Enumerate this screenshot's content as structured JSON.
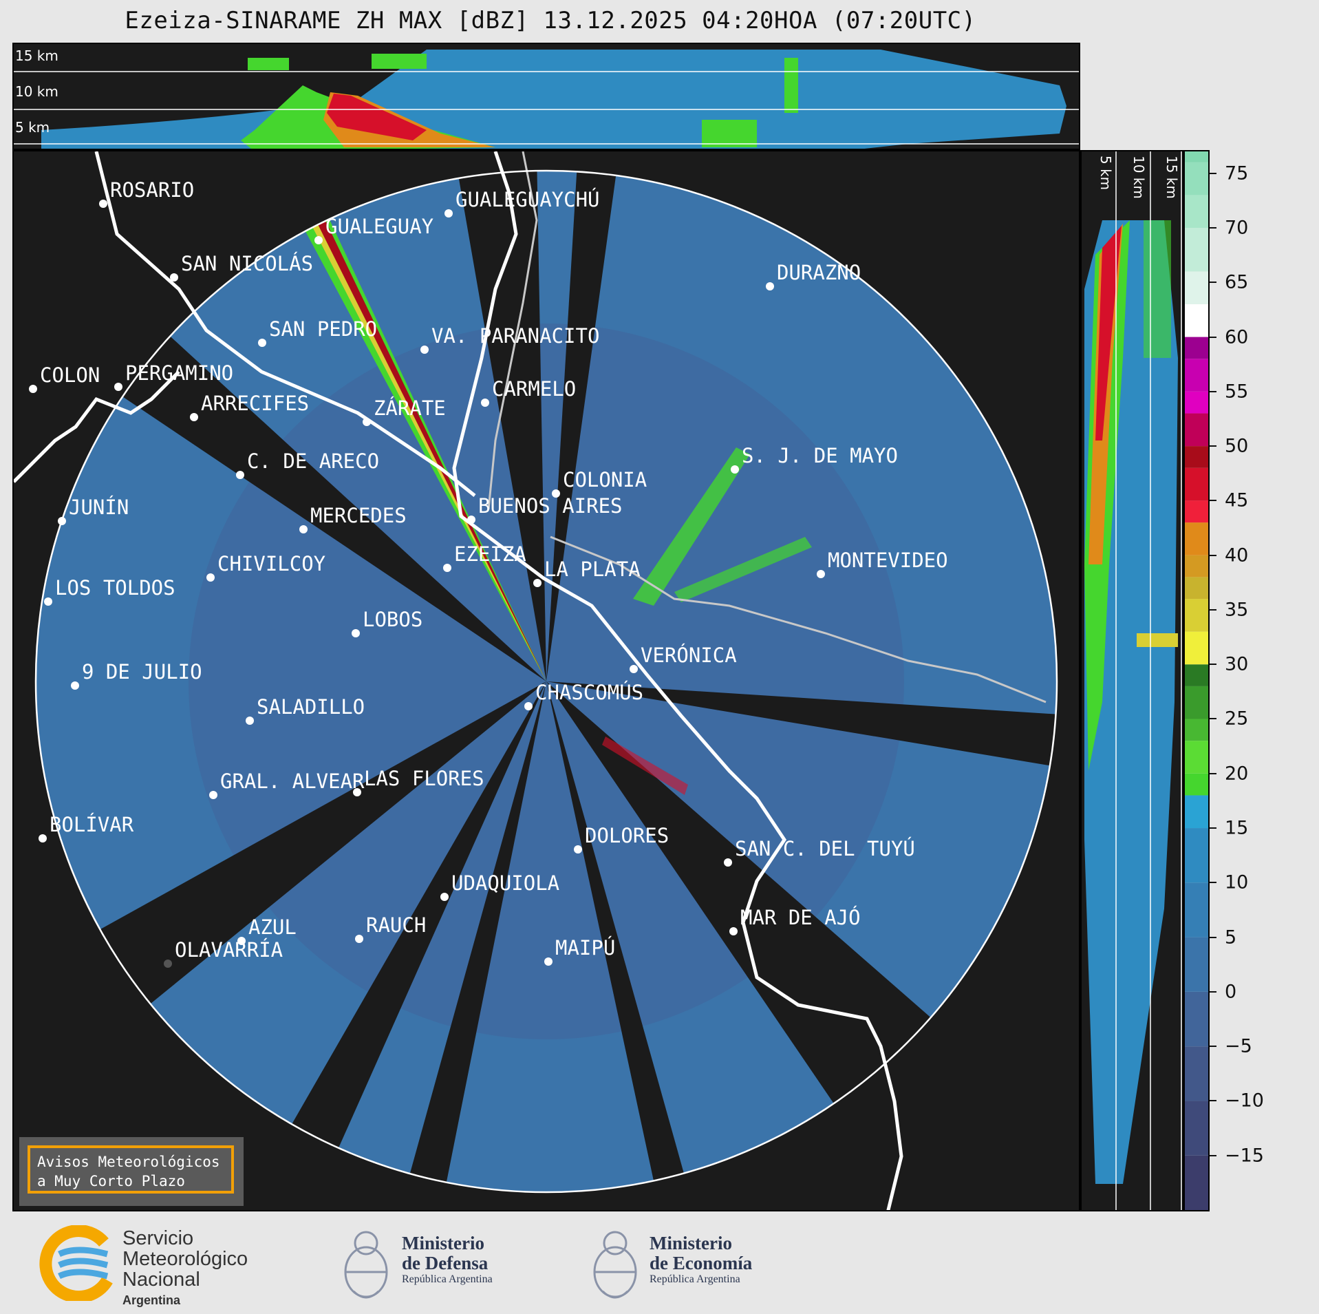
{
  "title": "Ezeiza-SINARAME ZH MAX [dBZ] 13.12.2025 04:20HOA (07:20UTC)",
  "top_panel": {
    "km_labels": [
      "15 km",
      "10 km",
      "5 km"
    ]
  },
  "side_panel": {
    "km_labels": [
      "5 km",
      "10 km",
      "15 km"
    ]
  },
  "map": {
    "cities": [
      {
        "name": "ROSARIO"
      },
      {
        "name": "GUALEGUAYCHÚ"
      },
      {
        "name": "GUALEGUAY"
      },
      {
        "name": "SAN NICOLÁS"
      },
      {
        "name": "DURAZNO"
      },
      {
        "name": "SAN PEDRO"
      },
      {
        "name": "VA. PARANACITO"
      },
      {
        "name": "COLON"
      },
      {
        "name": "PERGAMINO"
      },
      {
        "name": "CARMELO"
      },
      {
        "name": "ARRECIFES"
      },
      {
        "name": "ZÁRATE"
      },
      {
        "name": "S. J. DE MAYO"
      },
      {
        "name": "C. DE ARECO"
      },
      {
        "name": "COLONIA"
      },
      {
        "name": "BUENOS AIRES"
      },
      {
        "name": "JUNÍN"
      },
      {
        "name": "MERCEDES"
      },
      {
        "name": "MONTEVIDEO"
      },
      {
        "name": "EZEIZA"
      },
      {
        "name": "CHIVILCOY"
      },
      {
        "name": "LA PLATA"
      },
      {
        "name": "LOS TOLDOS"
      },
      {
        "name": "LOBOS"
      },
      {
        "name": "VERÓNICA"
      },
      {
        "name": "9 DE JULIO"
      },
      {
        "name": "CHASCOMÚS"
      },
      {
        "name": "SALADILLO"
      },
      {
        "name": "GRAL. ALVEAR"
      },
      {
        "name": "LAS FLORES"
      },
      {
        "name": "BOLÍVAR"
      },
      {
        "name": "DOLORES"
      },
      {
        "name": "SAN C. DEL TUYÚ"
      },
      {
        "name": "UDAQUIOLA"
      },
      {
        "name": "MAR DE AJÓ"
      },
      {
        "name": "AZUL"
      },
      {
        "name": "RAUCH"
      },
      {
        "name": "OLAVARRÍA"
      },
      {
        "name": "MAIPÚ"
      }
    ]
  },
  "colorbar": {
    "unit": "dBZ",
    "ticks": [
      "75",
      "70",
      "65",
      "60",
      "55",
      "50",
      "45",
      "40",
      "35",
      "30",
      "25",
      "20",
      "15",
      "10",
      "5",
      "0",
      "−5",
      "−10",
      "−15"
    ],
    "range": [
      -20,
      77
    ],
    "colors": {
      "-20": "#3c3d6b",
      "-15": "#3f4a7a",
      "-10": "#42588a",
      "-5": "#41659a",
      "0": "#3b74aa",
      "5": "#357fb5",
      "10": "#2f8bc1",
      "15": "#2aa3d4",
      "18": "#45d62e",
      "20": "#5bdc34",
      "23": "#48b832",
      "25": "#3a9b2c",
      "28": "#2a7a24",
      "30": "#f0ef3a",
      "33": "#d9cf34",
      "36": "#c8b32e",
      "38": "#d49a22",
      "40": "#e08a1a",
      "43": "#f0203a",
      "45": "#d6102a",
      "48": "#a80c1a",
      "50": "#c00058",
      "53": "#e000c0",
      "55": "#c800b0",
      "58": "#9c0090",
      "60": "#ffffff",
      "63": "#dff3ea",
      "66": "#c2ecd8",
      "70": "#a8e6c8",
      "73": "#94dfbc",
      "76": "#82d8b0"
    }
  },
  "aviso": {
    "line1": "Avisos Meteorológicos",
    "line2": "a Muy Corto Plazo"
  },
  "footer": {
    "smn": {
      "line1": "Servicio",
      "line2": "Meteorológico",
      "line3": "Nacional",
      "line4": "Argentina"
    },
    "defensa": {
      "line1": "Ministerio",
      "line2": "de Defensa",
      "line3": "República Argentina"
    },
    "economia": {
      "line1": "Ministerio",
      "line2": "de Economía",
      "line3": "República Argentina"
    }
  }
}
